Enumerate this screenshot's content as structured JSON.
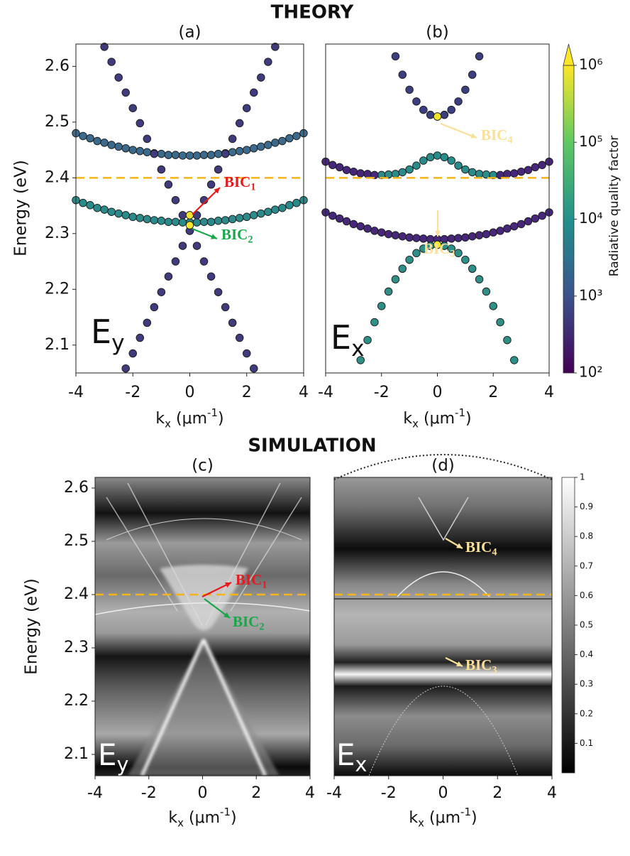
{
  "chart_data": [
    {
      "type": "scatter",
      "header": "THEORY",
      "title": "(a)",
      "ylabel": "Energy (eV)",
      "xlabel": {
        "text": "k",
        "sub": "x",
        "rest": " (μm",
        "sup": "-1",
        "end": ")"
      },
      "xlim": [
        -4,
        4
      ],
      "ylim": [
        2.05,
        2.64
      ],
      "xticks": [
        -4,
        -2,
        0,
        2,
        4
      ],
      "yticks": [
        2.1,
        2.2,
        2.3,
        2.4,
        2.5,
        2.6
      ],
      "hline": 2.4,
      "hline_color": "#f5b418",
      "label": {
        "text": "E",
        "sub": "y"
      },
      "series": [
        {
          "color": "#3b6a8c",
          "x": [
            -4,
            -3.75,
            -3.5,
            -3.25,
            -3,
            -2.75,
            -2.5,
            -2.25,
            -2,
            -1.75,
            -1.5,
            -1.25,
            -1,
            -0.75,
            -0.5,
            -0.25,
            0,
            0.25,
            0.5,
            0.75,
            1,
            1.25,
            1.5,
            1.75,
            2,
            2.25,
            2.5,
            2.75,
            3,
            3.25,
            3.5,
            3.75,
            4
          ],
          "values": [
            2.48,
            2.475,
            2.471,
            2.466,
            2.463,
            2.459,
            2.456,
            2.453,
            2.45,
            2.448,
            2.446,
            2.444,
            2.443,
            2.441,
            2.441,
            2.44,
            2.44,
            2.44,
            2.441,
            2.441,
            2.443,
            2.444,
            2.446,
            2.448,
            2.45,
            2.453,
            2.456,
            2.459,
            2.463,
            2.466,
            2.471,
            2.475,
            2.48
          ]
        },
        {
          "color": "#2b8a8a",
          "x": [
            -4,
            -3.75,
            -3.5,
            -3.25,
            -3,
            -2.75,
            -2.5,
            -2.25,
            -2,
            -1.75,
            -1.5,
            -1.25,
            -1,
            -0.75,
            -0.5,
            -0.25,
            0,
            0.25,
            0.5,
            0.75,
            1,
            1.25,
            1.5,
            1.75,
            2,
            2.25,
            2.5,
            2.75,
            3,
            3.25,
            3.5,
            3.75,
            4
          ],
          "values": [
            2.36,
            2.355,
            2.351,
            2.346,
            2.343,
            2.339,
            2.336,
            2.333,
            2.33,
            2.328,
            2.326,
            2.324,
            2.323,
            2.321,
            2.321,
            2.32,
            2.32,
            2.32,
            2.321,
            2.321,
            2.323,
            2.324,
            2.326,
            2.328,
            2.33,
            2.333,
            2.336,
            2.339,
            2.343,
            2.346,
            2.351,
            2.355,
            2.36
          ]
        },
        {
          "color": "#3f3b7d",
          "x": [
            -2.25,
            -2,
            -1.75,
            -1.5,
            -1.25,
            -1,
            -0.75,
            -0.5,
            -0.25,
            0,
            0.25,
            0.5,
            0.75,
            1,
            1.25,
            1.5,
            1.75,
            2,
            2.25,
            2.5,
            2.75,
            3
          ],
          "values": [
            2.058,
            2.085,
            2.113,
            2.14,
            2.168,
            2.195,
            2.223,
            2.25,
            2.278,
            2.305,
            2.333,
            2.36,
            2.388,
            2.415,
            2.443,
            2.47,
            2.498,
            2.525,
            2.553,
            2.58,
            2.608,
            2.635
          ]
        },
        {
          "color": "#3f3b7d",
          "x": [
            -3,
            -2.75,
            -2.5,
            -2.25,
            -2,
            -1.75,
            -1.5,
            -1.25,
            -1,
            -0.75,
            -0.5,
            -0.25,
            0,
            0.25,
            0.5,
            0.75,
            1,
            1.25,
            1.5,
            1.75,
            2,
            2.25
          ],
          "values": [
            2.635,
            2.608,
            2.58,
            2.553,
            2.525,
            2.498,
            2.47,
            2.443,
            2.415,
            2.388,
            2.36,
            2.333,
            2.305,
            2.278,
            2.25,
            2.223,
            2.195,
            2.168,
            2.14,
            2.113,
            2.085,
            2.058
          ]
        },
        {
          "color": "#f2e52a",
          "x": [
            0,
            0
          ],
          "values": [
            2.333,
            2.315
          ]
        }
      ],
      "annotations": [
        {
          "text": "BIC",
          "sub": "1",
          "color": "#e8191c"
        },
        {
          "text": "BIC",
          "sub": "2",
          "color": "#1aa64a"
        }
      ]
    },
    {
      "type": "scatter",
      "title": "(b)",
      "xlabel": {
        "text": "k",
        "sub": "x",
        "rest": " (μm",
        "sup": "-1",
        "end": ")"
      },
      "xlim": [
        -4,
        4
      ],
      "ylim": [
        2.05,
        2.64
      ],
      "xticks": [
        -4,
        -2,
        0,
        2,
        4
      ],
      "hline": 2.4,
      "hline_color": "#f5b418",
      "label": {
        "text": "E",
        "sub": "x"
      },
      "series": [
        {
          "color": "#3b3f80",
          "x": [
            -1.5,
            -1.25,
            -1,
            -0.75,
            -0.5,
            -0.25,
            0,
            0.25,
            0.5,
            0.75,
            1,
            1.25,
            1.5
          ],
          "values": [
            2.618,
            2.585,
            2.558,
            2.537,
            2.522,
            2.513,
            2.51,
            2.513,
            2.522,
            2.537,
            2.558,
            2.585,
            2.618
          ]
        },
        {
          "color": "#2a8c8a",
          "x": [
            -2,
            -1.75,
            -1.5,
            -1.25,
            -1,
            -0.75,
            -0.5,
            -0.25,
            0,
            0.25,
            0.5,
            0.75,
            1,
            1.25,
            1.5,
            1.75,
            2
          ],
          "values": [
            2.405,
            2.406,
            2.407,
            2.41,
            2.415,
            2.422,
            2.431,
            2.437,
            2.44,
            2.437,
            2.431,
            2.422,
            2.415,
            2.41,
            2.407,
            2.406,
            2.405
          ]
        },
        {
          "color": "#46277a",
          "x": [
            -4,
            -3.75,
            -3.5,
            -3.25,
            -3,
            -2.75,
            -2.5,
            -2.25,
            2.25,
            2.5,
            2.75,
            3,
            3.25,
            3.5,
            3.75,
            4
          ],
          "values": [
            2.429,
            2.423,
            2.419,
            2.414,
            2.411,
            2.408,
            2.407,
            2.405,
            2.405,
            2.407,
            2.408,
            2.411,
            2.414,
            2.419,
            2.423,
            2.429
          ]
        },
        {
          "color": "#46277a",
          "x": [
            -4,
            -3.75,
            -3.5,
            -3.25,
            -3,
            -2.75,
            -2.5,
            -2.25,
            -2,
            -1.75,
            -1.5,
            -1.25,
            -1,
            -0.75,
            -0.5,
            -0.25,
            0,
            0.25,
            0.5,
            0.75,
            1,
            1.25,
            1.5,
            1.75,
            2,
            2.25,
            2.5,
            2.75,
            3,
            3.25,
            3.5,
            3.75,
            4
          ],
          "values": [
            2.338,
            2.332,
            2.327,
            2.322,
            2.317,
            2.313,
            2.309,
            2.305,
            2.302,
            2.299,
            2.297,
            2.295,
            2.293,
            2.292,
            2.291,
            2.29,
            2.29,
            2.29,
            2.291,
            2.292,
            2.293,
            2.295,
            2.297,
            2.299,
            2.302,
            2.305,
            2.309,
            2.313,
            2.317,
            2.322,
            2.327,
            2.332,
            2.338
          ]
        },
        {
          "color": "#2e8f86",
          "x": [
            -2.75,
            -2.5,
            -2.25,
            -2,
            -1.75,
            -1.5,
            -1.25,
            -1,
            -0.75,
            -0.5,
            -0.25,
            0,
            0.25,
            0.5,
            0.75,
            1,
            1.25,
            1.5,
            1.75,
            2,
            2.25,
            2.5,
            2.75
          ],
          "values": [
            2.073,
            2.109,
            2.141,
            2.17,
            2.196,
            2.218,
            2.237,
            2.253,
            2.265,
            2.273,
            2.278,
            2.28,
            2.278,
            2.273,
            2.265,
            2.253,
            2.237,
            2.218,
            2.196,
            2.17,
            2.141,
            2.109,
            2.073
          ]
        },
        {
          "color": "#f2e52a",
          "x": [
            0,
            0
          ],
          "values": [
            2.51,
            2.28
          ]
        }
      ],
      "annotations": [
        {
          "text": "BIC",
          "sub": "4",
          "color": "#fbe09a"
        },
        {
          "text": "BIC",
          "sub": "3",
          "color": "#fbe09a"
        }
      ],
      "colorbar": {
        "label": "Radiative quality factor",
        "scale": "log",
        "lim": [
          100,
          1000000
        ],
        "ticks": [
          {
            "value": 100,
            "label": "10²"
          },
          {
            "value": 1000,
            "label": "10³"
          },
          {
            "value": 10000,
            "label": "10⁴"
          },
          {
            "value": 100000,
            "label": "10⁵"
          },
          {
            "value": 1000000,
            "label": "10⁶"
          }
        ],
        "colors": [
          "#440154",
          "#3b528b",
          "#21918c",
          "#5ec962",
          "#fde725"
        ]
      }
    },
    {
      "type": "image",
      "header": "SIMULATION",
      "title": "(c)",
      "ylabel": "Energy (eV)",
      "xlabel": {
        "text": "k",
        "sub": "x",
        "rest": " (μm",
        "sup": "-1",
        "end": ")"
      },
      "xlim": [
        -4,
        4
      ],
      "ylim": [
        2.06,
        2.62
      ],
      "xticks": [
        -4,
        -2,
        0,
        2,
        4
      ],
      "yticks": [
        2.1,
        2.2,
        2.3,
        2.4,
        2.5,
        2.6
      ],
      "hline": 2.4,
      "hline_color": "#f5b418",
      "label": {
        "text": "E",
        "sub": "y"
      },
      "annotations": [
        {
          "text": "BIC",
          "sub": "1",
          "color": "#e8191c"
        },
        {
          "text": "BIC",
          "sub": "2",
          "color": "#1aa64a"
        }
      ]
    },
    {
      "type": "image",
      "title": "(d)",
      "xlabel": {
        "text": "k",
        "sub": "x",
        "rest": " (μm",
        "sup": "-1",
        "end": ")"
      },
      "xlim": [
        -4,
        4
      ],
      "ylim": [
        2.06,
        2.62
      ],
      "xticks": [
        -4,
        -2,
        0,
        2,
        4
      ],
      "hline": 2.4,
      "hline_color": "#f5b418",
      "label": {
        "text": "E",
        "sub": "x"
      },
      "annotations": [
        {
          "text": "BIC",
          "sub": "4",
          "color": "#fbe09a"
        },
        {
          "text": "BIC",
          "sub": "3",
          "color": "#fbe09a"
        }
      ],
      "colorbar": {
        "scale": "linear",
        "lim": [
          0,
          1
        ],
        "ticks": [
          0.1,
          0.2,
          0.3,
          0.4,
          0.5,
          0.6,
          0.7,
          0.8,
          0.9,
          1
        ],
        "colors": [
          "#000000",
          "#ffffff"
        ]
      }
    }
  ]
}
